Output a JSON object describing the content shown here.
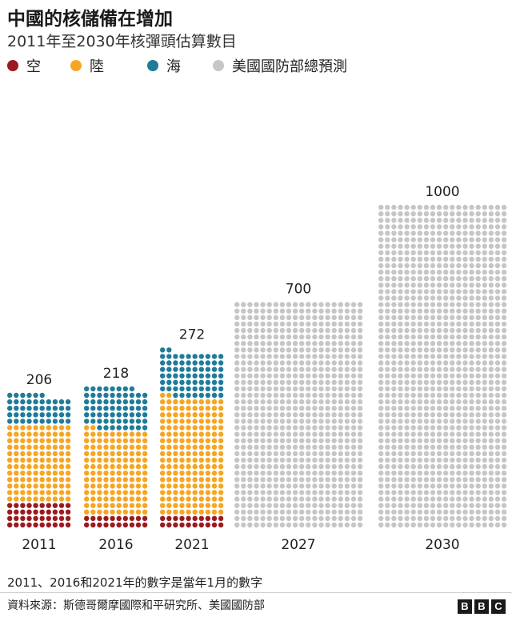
{
  "title": "中國的核儲備在增加",
  "subtitle": "2011年至2030年核彈頭估算數目",
  "legend": [
    {
      "label": "空",
      "color": "#9b1a1f"
    },
    {
      "label": "陸",
      "color": "#f5a623"
    },
    {
      "label": "海",
      "color": "#1f7b99"
    },
    {
      "label": "美國國防部總預測",
      "color": "#c6c6c6"
    }
  ],
  "chart_data": {
    "type": "waffle",
    "title": "中國的核儲備在增加",
    "subtitle": "2011年至2030年核彈頭估算數目",
    "categories": [
      "2011",
      "2016",
      "2021",
      "2027",
      "2030"
    ],
    "totals": [
      206,
      218,
      272,
      700,
      1000
    ],
    "series": [
      {
        "name": "空",
        "color": "#9b1a1f",
        "values": [
          40,
          20,
          20,
          0,
          0
        ]
      },
      {
        "name": "陸",
        "color": "#f5a623",
        "values": [
          120,
          132,
          182,
          0,
          0
        ]
      },
      {
        "name": "海",
        "color": "#1f7b99",
        "values": [
          46,
          66,
          70,
          0,
          0
        ]
      },
      {
        "name": "美國國防部總預測",
        "color": "#c6c6c6",
        "values": [
          0,
          0,
          0,
          700,
          1000
        ]
      }
    ],
    "columns_per_bar": [
      10,
      10,
      10,
      20,
      20
    ],
    "units_per_dot": 1
  },
  "footnote": "2011、2016和2021年的數字是當年1月的數字",
  "source": "資料來源：斯德哥爾摩國際和平研究所、美國國防部",
  "logo": [
    "B",
    "B",
    "C"
  ]
}
